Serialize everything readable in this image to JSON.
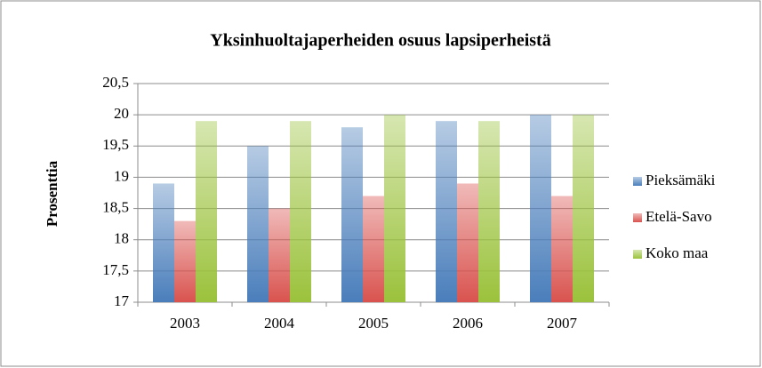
{
  "chart_data": {
    "type": "bar",
    "title": "Yksinhuoltajaperheiden osuus lapsiperheistä",
    "y_label": "Prosenttia",
    "categories": [
      "2003",
      "2004",
      "2005",
      "2006",
      "2007"
    ],
    "series": [
      {
        "name": "Pieksämäki",
        "color": "#4a7ebb",
        "values": [
          18.9,
          19.5,
          19.8,
          19.9,
          20.0
        ]
      },
      {
        "name": "Etelä-Savo",
        "color": "#d9534f",
        "values": [
          18.3,
          18.5,
          18.7,
          18.9,
          18.7
        ]
      },
      {
        "name": "Koko maa",
        "color": "#9bc23c",
        "values": [
          19.9,
          19.9,
          20.0,
          19.9,
          20.0
        ]
      }
    ],
    "ylim": [
      17,
      20.5
    ],
    "yticks": [
      17,
      {
        "value": 17.5,
        "label": "17,5"
      },
      18,
      {
        "value": 18.5,
        "label": "18,5"
      },
      19,
      {
        "value": 19.5,
        "label": "19,5"
      },
      20,
      {
        "value": 20.5,
        "label": "20,5"
      }
    ],
    "grid": true,
    "legend": "right"
  }
}
